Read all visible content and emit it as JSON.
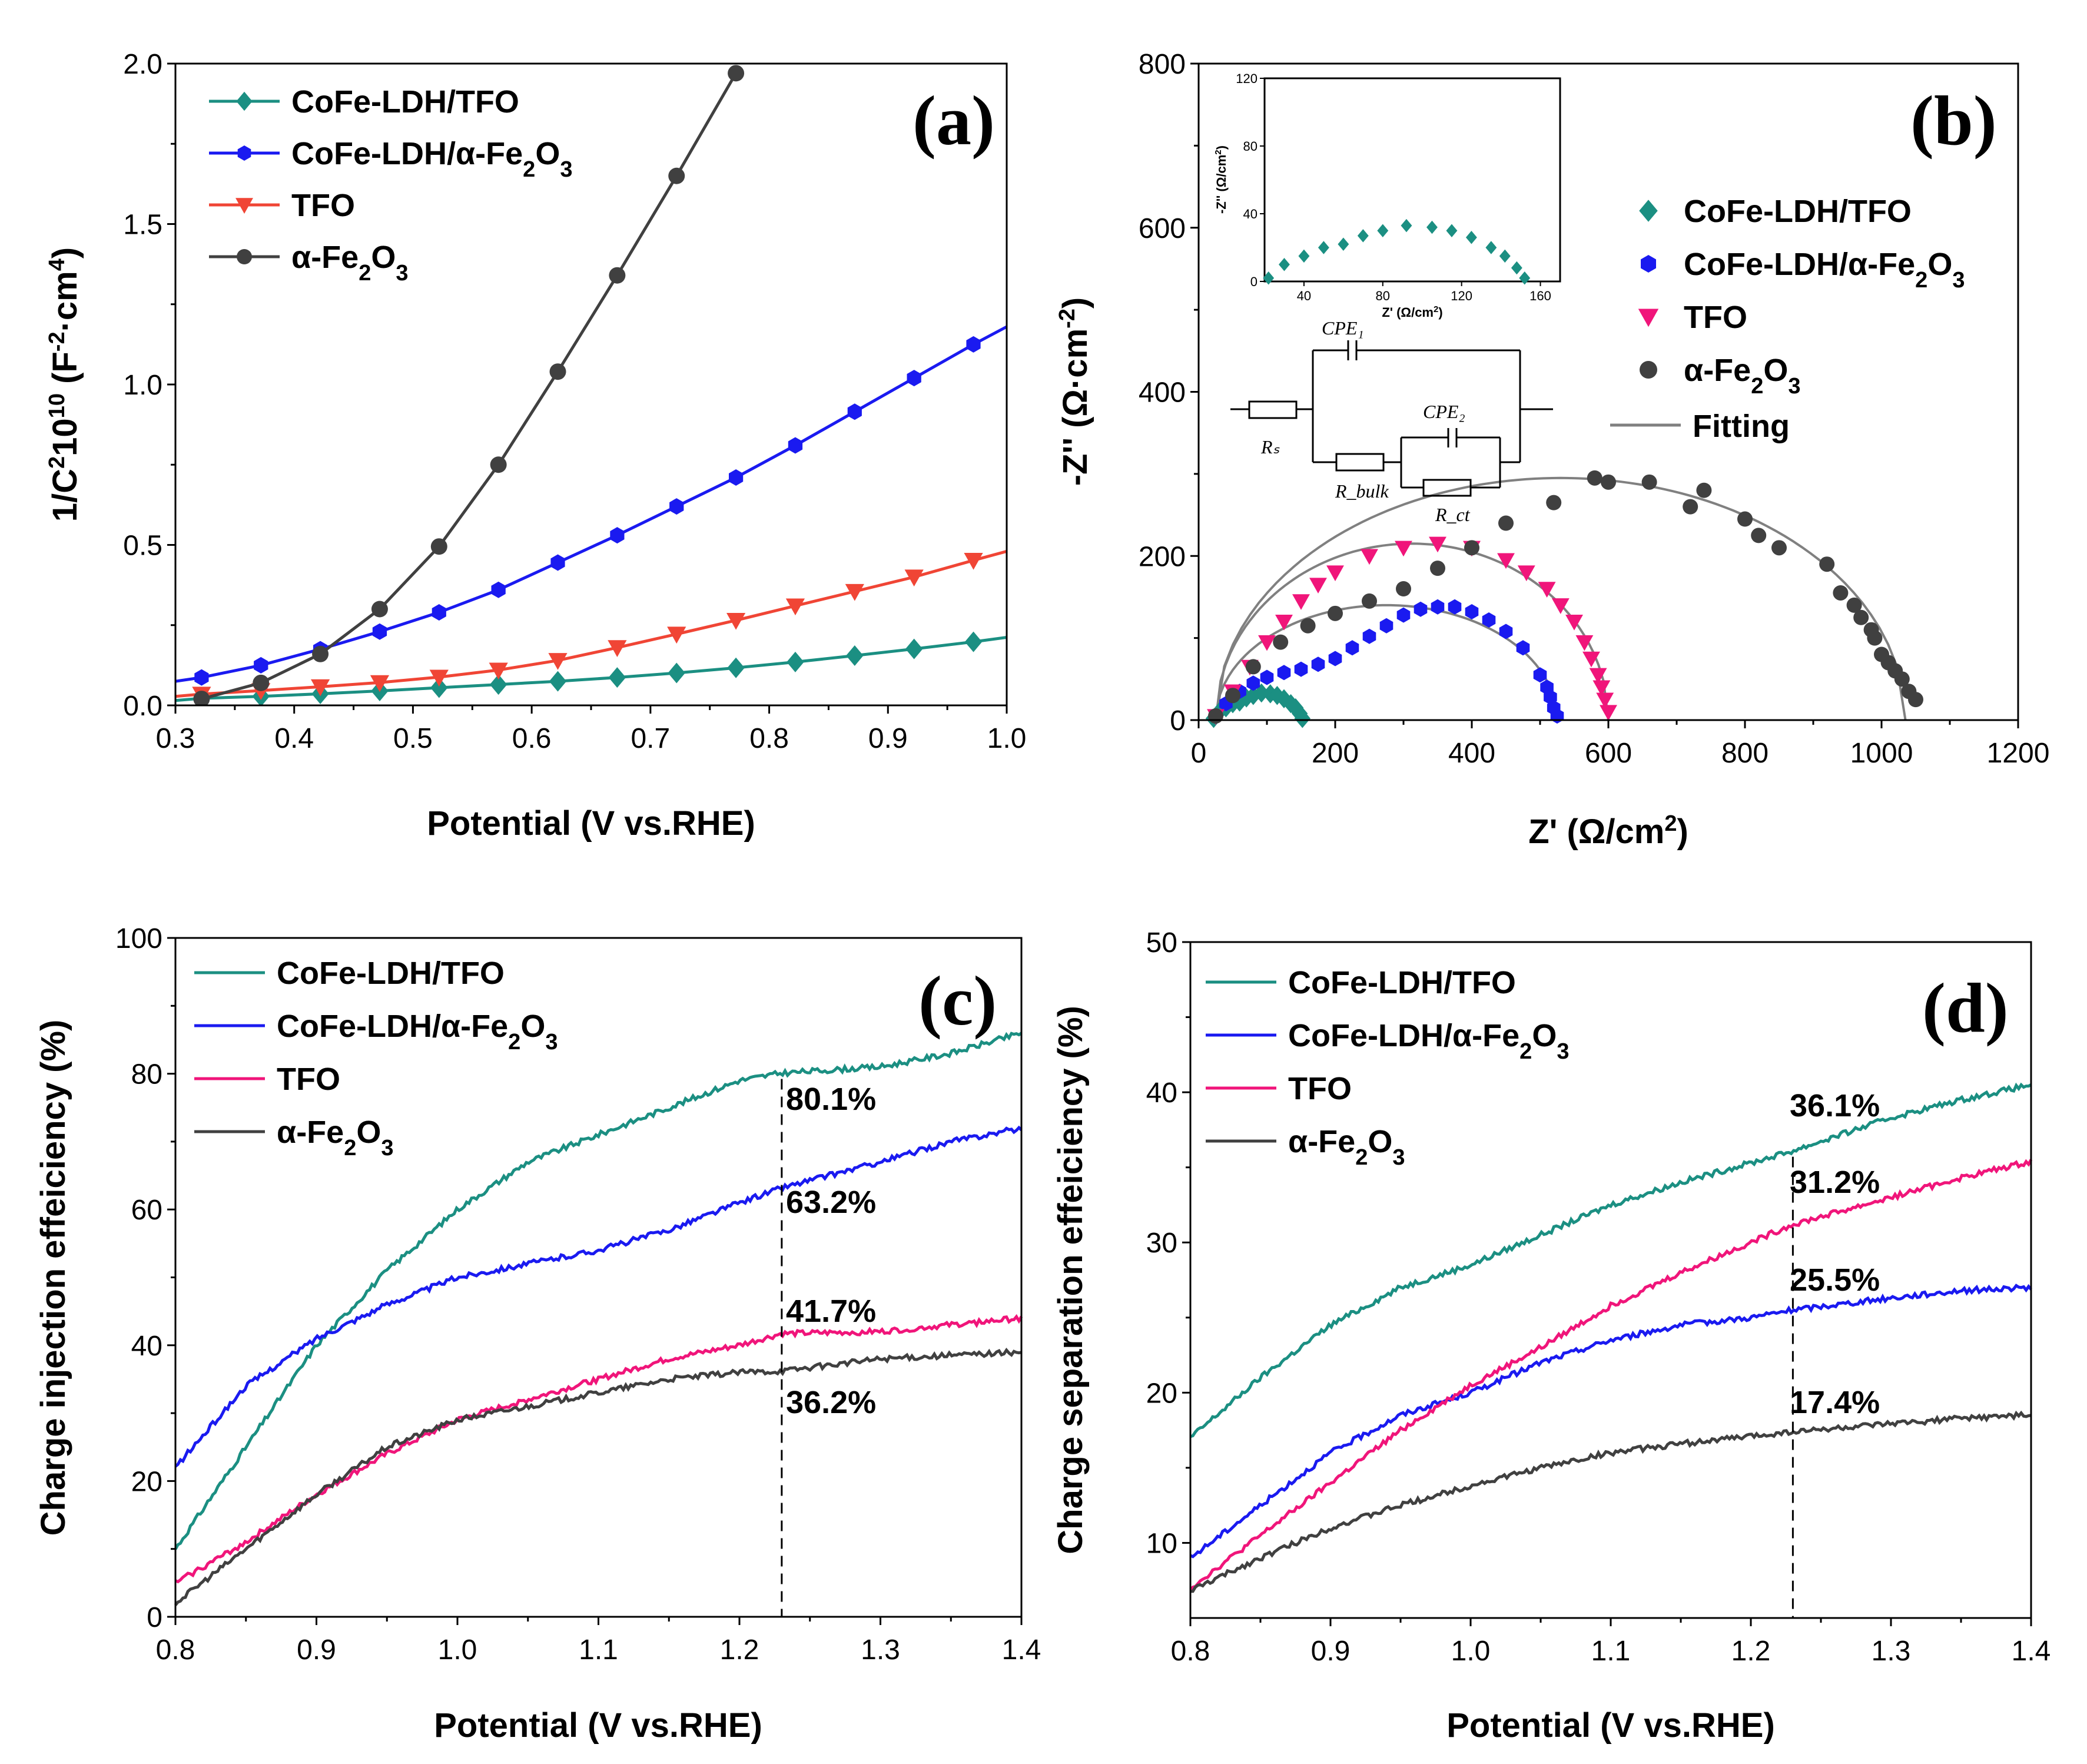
{
  "colors": {
    "teal": "#1b8f82",
    "blue": "#1a1af0",
    "red": "#f04535",
    "pink": "#f0157a",
    "dark": "#404040",
    "fit": "#808080"
  },
  "chart_data": [
    {
      "panel": "(a)",
      "type": "line",
      "xlabel": "Potential (V vs.RHE)",
      "ylabel": "1/C²10¹⁰ (F⁻²·cm⁴)",
      "xlim": [
        0.3,
        1.0
      ],
      "ylim": [
        0,
        2.0
      ],
      "xticks": [
        "0.3",
        "0.4",
        "0.5",
        "0.6",
        "0.7",
        "0.8",
        "0.9",
        "1.0"
      ],
      "yticks": [
        "0.0",
        "0.5",
        "1.0",
        "1.5",
        "2.0"
      ],
      "legend": [
        "CoFe-LDH/TFO",
        "CoFe-LDH/α-Fe2O3",
        "TFO",
        "α-Fe2O3"
      ],
      "series": [
        {
          "name": "CoFe-LDH/TFO",
          "marker": "diamond",
          "color": "teal",
          "x": [
            0.3,
            0.322,
            0.372,
            0.422,
            0.472,
            0.522,
            0.572,
            0.622,
            0.672,
            0.722,
            0.772,
            0.822,
            0.872,
            0.922,
            0.972,
            1.0
          ],
          "y": [
            0.015,
            0.022,
            0.028,
            0.036,
            0.045,
            0.055,
            0.065,
            0.075,
            0.087,
            0.101,
            0.117,
            0.135,
            0.155,
            0.176,
            0.198,
            0.212
          ]
        },
        {
          "name": "CoFe-LDH/α-Fe2O3",
          "marker": "hexagon",
          "color": "blue",
          "x": [
            0.3,
            0.322,
            0.372,
            0.422,
            0.472,
            0.522,
            0.572,
            0.622,
            0.672,
            0.722,
            0.772,
            0.822,
            0.872,
            0.922,
            0.972,
            1.0
          ],
          "y": [
            0.075,
            0.087,
            0.125,
            0.175,
            0.23,
            0.29,
            0.36,
            0.445,
            0.53,
            0.62,
            0.71,
            0.81,
            0.915,
            1.02,
            1.125,
            1.18
          ]
        },
        {
          "name": "TFO",
          "marker": "triangle-down",
          "color": "red",
          "x": [
            0.3,
            0.322,
            0.372,
            0.422,
            0.472,
            0.522,
            0.572,
            0.622,
            0.672,
            0.722,
            0.772,
            0.822,
            0.872,
            0.922,
            0.972,
            1.0
          ],
          "y": [
            0.028,
            0.035,
            0.046,
            0.058,
            0.071,
            0.088,
            0.11,
            0.14,
            0.18,
            0.222,
            0.265,
            0.31,
            0.355,
            0.4,
            0.452,
            0.48
          ]
        },
        {
          "name": "α-Fe2O3",
          "marker": "circle",
          "color": "dark",
          "x": [
            0.322,
            0.372,
            0.422,
            0.472,
            0.522,
            0.572,
            0.622,
            0.672,
            0.722,
            0.772
          ],
          "y": [
            0.02,
            0.07,
            0.16,
            0.3,
            0.495,
            0.75,
            1.04,
            1.34,
            1.65,
            1.97
          ]
        }
      ]
    },
    {
      "panel": "(b)",
      "type": "scatter",
      "xlabel": "Z' (Ω/cm²)",
      "ylabel": "-Z'' (Ω·cm⁻²)",
      "xlim": [
        0,
        1200
      ],
      "ylim": [
        0,
        800
      ],
      "xticks": [
        "0",
        "200",
        "400",
        "600",
        "800",
        "1000",
        "1200"
      ],
      "yticks": [
        "0",
        "200",
        "400",
        "600",
        "800"
      ],
      "legend": [
        "CoFe-LDH/TFO",
        "CoFe-LDH/α-Fe2O3",
        "TFO",
        "α-Fe2O3",
        "Fitting"
      ],
      "series": [
        {
          "name": "CoFe-LDH/TFO",
          "marker": "diamond",
          "color": "teal",
          "x": [
            22,
            30,
            40,
            50,
            60,
            70,
            80,
            92,
            105,
            115,
            125,
            135,
            142,
            148,
            152
          ],
          "y": [
            2,
            10,
            15,
            20,
            22,
            27,
            30,
            33,
            32,
            30,
            26,
            20,
            15,
            8,
            2
          ]
        },
        {
          "name": "CoFe-LDH/α-Fe2O3",
          "marker": "hexagon",
          "color": "blue",
          "x": [
            25,
            40,
            60,
            80,
            100,
            125,
            150,
            175,
            200,
            225,
            250,
            275,
            300,
            325,
            350,
            375,
            400,
            425,
            450,
            475,
            500,
            510,
            515,
            520,
            525
          ],
          "y": [
            5,
            20,
            35,
            45,
            52,
            58,
            62,
            68,
            75,
            88,
            102,
            115,
            128,
            135,
            138,
            138,
            132,
            122,
            108,
            88,
            55,
            40,
            28,
            15,
            5
          ]
        },
        {
          "name": "TFO",
          "marker": "triangle-down",
          "color": "pink",
          "x": [
            25,
            50,
            75,
            100,
            125,
            150,
            175,
            200,
            250,
            300,
            350,
            400,
            450,
            480,
            510,
            530,
            550,
            565,
            575,
            585,
            590,
            595,
            600
          ],
          "y": [
            5,
            35,
            65,
            95,
            120,
            145,
            165,
            180,
            200,
            210,
            215,
            210,
            195,
            180,
            160,
            140,
            120,
            95,
            75,
            55,
            40,
            25,
            10
          ]
        },
        {
          "name": "α-Fe2O3",
          "marker": "circle",
          "color": "dark",
          "x": [
            25,
            50,
            80,
            120,
            160,
            200,
            250,
            300,
            350,
            400,
            450,
            520,
            580,
            600,
            660,
            720,
            740,
            800,
            820,
            850,
            920,
            940,
            960,
            970,
            985,
            990,
            1000,
            1010,
            1020,
            1030,
            1040,
            1050
          ],
          "y": [
            5,
            30,
            65,
            95,
            115,
            130,
            145,
            160,
            185,
            210,
            240,
            265,
            295,
            290,
            290,
            260,
            280,
            245,
            225,
            210,
            190,
            155,
            140,
            125,
            110,
            100,
            80,
            70,
            60,
            50,
            35,
            25
          ]
        },
        {
          "name": "Fitting",
          "type": "fit-curves",
          "color": "fit"
        }
      ],
      "inset": {
        "xlabel": "Z' (Ω/cm²)",
        "ylabel": "-Z'' (Ω/cm²)",
        "xlim": [
          20,
          170
        ],
        "ylim": [
          0,
          120
        ],
        "xticks": [
          "40",
          "80",
          "120",
          "160"
        ],
        "yticks": [
          "0",
          "40",
          "80",
          "120"
        ]
      },
      "circuit": {
        "cpe1": "CPE₁",
        "cpe2": "CPE₂",
        "rs": "Rₛ",
        "rbulk": "R_bulk",
        "rct": "R_ct"
      }
    },
    {
      "panel": "(c)",
      "type": "line",
      "xlabel": "Potential (V vs.RHE)",
      "ylabel": "Charge injection effeiciency (%)",
      "xlim": [
        0.8,
        1.4
      ],
      "ylim": [
        0,
        100
      ],
      "xticks": [
        "0.8",
        "0.9",
        "1.0",
        "1.1",
        "1.2",
        "1.3",
        "1.4"
      ],
      "yticks": [
        "0",
        "20",
        "40",
        "60",
        "80",
        "100"
      ],
      "legend": [
        "CoFe-LDH/TFO",
        "CoFe-LDH/α-Fe2O3",
        "TFO",
        "α-Fe2O3"
      ],
      "annotations": [
        "80.1%",
        "63.2%",
        "41.7%",
        "36.2%"
      ],
      "marker_x": 1.23,
      "series": [
        {
          "name": "CoFe-LDH/TFO",
          "color": "teal",
          "x": [
            0.8,
            0.85,
            0.9,
            0.95,
            1.0,
            1.05,
            1.1,
            1.15,
            1.2,
            1.23,
            1.3,
            1.35,
            1.4
          ],
          "y": [
            10,
            25,
            40,
            51,
            60,
            67,
            71,
            75,
            79,
            80.1,
            81,
            83,
            86
          ]
        },
        {
          "name": "CoFe-LDH/α-Fe2O3",
          "color": "blue",
          "x": [
            0.8,
            0.85,
            0.9,
            0.95,
            1.0,
            1.05,
            1.1,
            1.15,
            1.2,
            1.23,
            1.3,
            1.35,
            1.4
          ],
          "y": [
            22,
            34,
            41,
            46,
            50,
            52,
            54,
            57,
            61,
            63.2,
            67,
            70,
            72
          ]
        },
        {
          "name": "TFO",
          "color": "pink",
          "x": [
            0.8,
            0.85,
            0.9,
            0.95,
            1.0,
            1.05,
            1.1,
            1.15,
            1.2,
            1.23,
            1.3,
            1.35,
            1.4
          ],
          "y": [
            5,
            11,
            18,
            24,
            29,
            32,
            35,
            38,
            40,
            41.7,
            42,
            43,
            44
          ]
        },
        {
          "name": "α-Fe2O3",
          "color": "dark",
          "x": [
            0.8,
            0.85,
            0.9,
            0.95,
            1.0,
            1.05,
            1.1,
            1.15,
            1.2,
            1.23,
            1.3,
            1.35,
            1.4
          ],
          "y": [
            2,
            10,
            18,
            25,
            29,
            31,
            33,
            35,
            36,
            36.2,
            38,
            38.5,
            39
          ]
        }
      ]
    },
    {
      "panel": "(d)",
      "type": "line",
      "xlabel": "Potential (V vs.RHE)",
      "ylabel": "Charge separation effeiciency (%)",
      "xlim": [
        0.8,
        1.4
      ],
      "ylim": [
        5,
        50
      ],
      "xticks": [
        "0.8",
        "0.9",
        "1.0",
        "1.1",
        "1.2",
        "1.3",
        "1.4"
      ],
      "yticks": [
        "10",
        "20",
        "30",
        "40",
        "50"
      ],
      "legend": [
        "CoFe-LDH/TFO",
        "CoFe-LDH/α-Fe2O3",
        "TFO",
        "α-Fe2O3"
      ],
      "annotations": [
        "36.1%",
        "31.2%",
        "25.5%",
        "17.4%"
      ],
      "marker_x": 1.23,
      "series": [
        {
          "name": "CoFe-LDH/TFO",
          "color": "teal",
          "x": [
            0.8,
            0.85,
            0.9,
            0.95,
            1.0,
            1.05,
            1.1,
            1.15,
            1.2,
            1.23,
            1.3,
            1.35,
            1.4
          ],
          "y": [
            17,
            21,
            24.5,
            27,
            28.5,
            30.5,
            32.5,
            34,
            35.3,
            36.1,
            38.3,
            39.5,
            40.5
          ]
        },
        {
          "name": "CoFe-LDH/α-Fe2O3",
          "color": "blue",
          "x": [
            0.8,
            0.85,
            0.9,
            0.95,
            1.0,
            1.05,
            1.1,
            1.15,
            1.2,
            1.23,
            1.3,
            1.35,
            1.4
          ],
          "y": [
            9,
            12.5,
            16,
            18.5,
            20,
            22,
            23.5,
            24.5,
            25,
            25.5,
            26.3,
            26.8,
            27
          ]
        },
        {
          "name": "TFO",
          "color": "pink",
          "x": [
            0.8,
            0.85,
            0.9,
            0.95,
            1.0,
            1.05,
            1.1,
            1.15,
            1.2,
            1.23,
            1.3,
            1.35,
            1.4
          ],
          "y": [
            7,
            10.5,
            14,
            17.5,
            20.5,
            23,
            25.8,
            28,
            30,
            31.2,
            33,
            34.3,
            35.4
          ]
        },
        {
          "name": "α-Fe2O3",
          "color": "dark",
          "x": [
            0.8,
            0.85,
            0.9,
            0.95,
            1.0,
            1.05,
            1.1,
            1.15,
            1.2,
            1.23,
            1.3,
            1.35,
            1.4
          ],
          "y": [
            6.8,
            9,
            11,
            12.5,
            13.8,
            15,
            16,
            16.6,
            17.1,
            17.4,
            17.9,
            18.3,
            18.5
          ]
        }
      ]
    }
  ]
}
